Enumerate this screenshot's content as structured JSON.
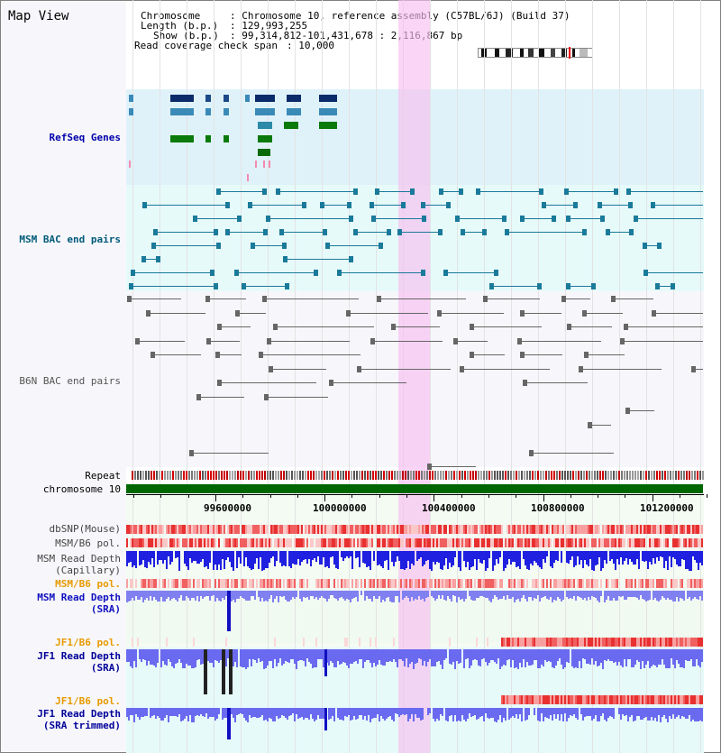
{
  "page": {
    "title": "Map View"
  },
  "info": {
    "chromosome_label": "Chromosome",
    "chromosome_value": ": Chromosome 10, reference assembly (C57BL/6J) (Build 37)",
    "length_label": "Length (b.p.)",
    "length_value": ": 129,993,255",
    "show_label": "Show (b.p.)",
    "show_value": ": 99,314,812-101,431,678 : 2,116,867 bp",
    "coverage_label": "Read coverage check span",
    "coverage_value": ": 10,000"
  },
  "tracks": {
    "refseq": "RefSeq Genes",
    "msm_bac": "MSM BAC end pairs",
    "b6n_bac": "B6N BAC end pairs",
    "repeat": "Repeat",
    "chromosome": "chromosome 10",
    "dbsnp": "dbSNP(Mouse)",
    "msm_b6_pol": "MSM/B6 pol.",
    "msm_depth_cap_1": "MSM Read Depth",
    "msm_depth_cap_2": "(Capillary)",
    "msm_b6_pol_2": "MSM/B6 pol.",
    "msm_depth_sra_1": "MSM Read Depth",
    "msm_depth_sra_2": "(SRA)",
    "jf1_b6_pol": "JF1/B6 pol.",
    "jf1_depth_sra_1": "JF1 Read Depth",
    "jf1_depth_sra_2": "(SRA)",
    "jf1_b6_pol_2": "JF1/B6 pol.",
    "jf1_depth_trim_1": "JF1 Read Depth",
    "jf1_depth_trim_2": "(SRA trimmed)"
  },
  "ruler": {
    "labels": [
      "99600000",
      "100000000",
      "100400000",
      "100800000",
      "101200000"
    ]
  },
  "colors": {
    "refseq_bg": "#dff2fa",
    "msm_bac_bg": "#e6fafa",
    "msm_bac_color": "#1a7a9a",
    "b6n_color": "#666666",
    "highlight": "#f8bef0",
    "chrom_green": "#006600",
    "snp_red": "#e83030",
    "depth_blue": "#2020e0",
    "msm_sra_color": "#1010c0",
    "jf1_color": "#000099",
    "jf1_pol_color": "#e89a00"
  }
}
